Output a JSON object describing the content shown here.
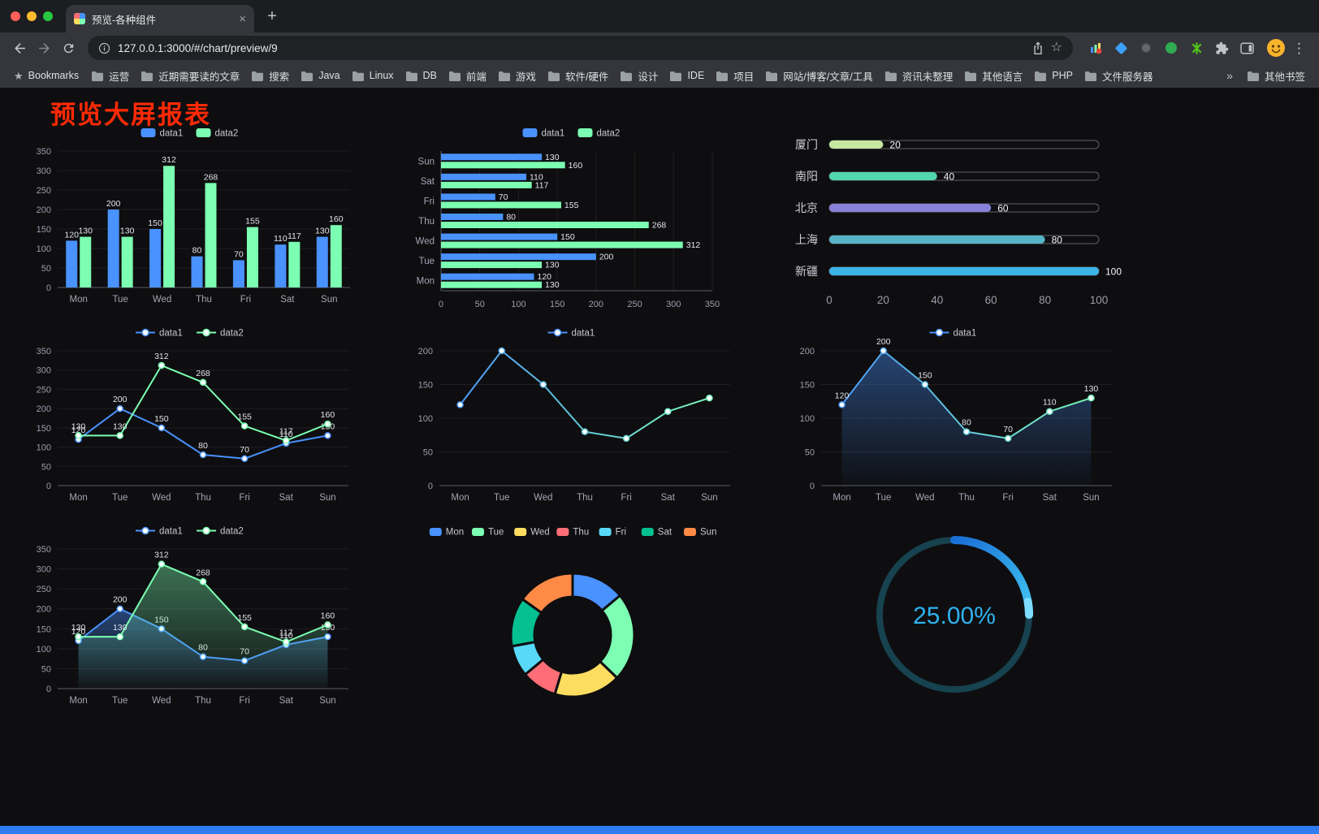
{
  "icons": {
    "tab_close": "×",
    "new_tab": "+",
    "bookmark_star": "☆",
    "menu_kebab": "⋮",
    "bookmarks_root_star": "★"
  },
  "browser": {
    "tab": {
      "title": "预览-各种组件"
    },
    "url": "127.0.0.1:3000/#/chart/preview/9",
    "bookmarks_bar": {
      "label": "Bookmarks",
      "folders": [
        "运营",
        "近期需要读的文章",
        "搜索",
        "Java",
        "Linux",
        "DB",
        "前端",
        "游戏",
        "软件/硬件",
        "设计",
        "IDE",
        "项目",
        "网站/博客/文章/工具",
        "资讯未整理",
        "其他语言",
        "PHP",
        "文件服务器"
      ],
      "overflow": "»",
      "other": "其他书签"
    }
  },
  "page": {
    "title": "预览大屏报表",
    "title_color": "#ff2a05",
    "background": "#0e0e10"
  },
  "chart_data": [
    {
      "type": "bar",
      "legend": [
        "data1",
        "data2"
      ],
      "categories": [
        "Mon",
        "Tue",
        "Wed",
        "Thu",
        "Fri",
        "Sat",
        "Sun"
      ],
      "series": [
        {
          "name": "data1",
          "color": "#4992ff",
          "values": [
            120,
            200,
            150,
            80,
            70,
            110,
            130
          ]
        },
        {
          "name": "data2",
          "color": "#7cffb2",
          "values": [
            130,
            130,
            312,
            268,
            155,
            117,
            160
          ]
        }
      ],
      "ylim": [
        0,
        350
      ],
      "yticks": [
        0,
        50,
        100,
        150,
        200,
        250,
        300,
        350
      ]
    },
    {
      "type": "hbar",
      "legend": [
        "data1",
        "data2"
      ],
      "categories": [
        "Mon",
        "Tue",
        "Wed",
        "Thu",
        "Fri",
        "Sat",
        "Sun"
      ],
      "series": [
        {
          "name": "data1",
          "color": "#4992ff",
          "values": [
            120,
            200,
            150,
            80,
            70,
            110,
            130
          ]
        },
        {
          "name": "data2",
          "color": "#7cffb2",
          "values": [
            130,
            130,
            312,
            268,
            155,
            117,
            160
          ]
        }
      ],
      "xlim": [
        0,
        350
      ],
      "xticks": [
        0,
        50,
        100,
        150,
        200,
        250,
        300,
        350
      ]
    },
    {
      "type": "progress",
      "items": [
        {
          "label": "厦门",
          "value": 20,
          "color": "#c8e7a1"
        },
        {
          "label": "南阳",
          "value": 40,
          "color": "#52d6ad"
        },
        {
          "label": "北京",
          "value": 60,
          "color": "#8781da"
        },
        {
          "label": "上海",
          "value": 80,
          "color": "#57b4c8"
        },
        {
          "label": "新疆",
          "value": 100,
          "color": "#3ab5e8"
        }
      ],
      "xlim": [
        0,
        100
      ],
      "xticks": [
        0,
        20,
        40,
        60,
        80,
        100
      ]
    },
    {
      "type": "line",
      "legend": [
        "data1",
        "data2"
      ],
      "categories": [
        "Mon",
        "Tue",
        "Wed",
        "Thu",
        "Fri",
        "Sat",
        "Sun"
      ],
      "series": [
        {
          "name": "data1",
          "color": "#4992ff",
          "values": [
            120,
            200,
            150,
            80,
            70,
            110,
            130
          ]
        },
        {
          "name": "data2",
          "color": "#7cffb2",
          "values": [
            130,
            130,
            312,
            268,
            155,
            117,
            160
          ]
        }
      ],
      "ylim": [
        0,
        350
      ],
      "yticks": [
        0,
        50,
        100,
        150,
        200,
        250,
        300,
        350
      ],
      "show_labels": true
    },
    {
      "type": "line",
      "legend": [
        "data1"
      ],
      "categories": [
        "Mon",
        "Tue",
        "Wed",
        "Thu",
        "Fri",
        "Sat",
        "Sun"
      ],
      "series": [
        {
          "name": "data1",
          "gradient": [
            "#4992ff",
            "#7cffb2"
          ],
          "values": [
            120,
            200,
            150,
            80,
            70,
            110,
            130
          ]
        }
      ],
      "ylim": [
        0,
        200
      ],
      "yticks": [
        0,
        50,
        100,
        150,
        200
      ],
      "show_labels": false
    },
    {
      "type": "line",
      "legend": [
        "data1"
      ],
      "categories": [
        "Mon",
        "Tue",
        "Wed",
        "Thu",
        "Fri",
        "Sat",
        "Sun"
      ],
      "series": [
        {
          "name": "data1",
          "gradient": [
            "#4992ff",
            "#7cffb2"
          ],
          "area": true,
          "values": [
            120,
            200,
            150,
            80,
            70,
            110,
            130
          ]
        }
      ],
      "ylim": [
        0,
        200
      ],
      "yticks": [
        0,
        50,
        100,
        150,
        200
      ],
      "show_labels": true
    },
    {
      "type": "line",
      "legend": [
        "data1",
        "data2"
      ],
      "categories": [
        "Mon",
        "Tue",
        "Wed",
        "Thu",
        "Fri",
        "Sat",
        "Sun"
      ],
      "series": [
        {
          "name": "data1",
          "color": "#4992ff",
          "area": true,
          "values": [
            120,
            200,
            150,
            80,
            70,
            110,
            130
          ]
        },
        {
          "name": "data2",
          "color": "#7cffb2",
          "area": true,
          "values": [
            130,
            130,
            312,
            268,
            155,
            117,
            160
          ]
        }
      ],
      "ylim": [
        0,
        350
      ],
      "yticks": [
        0,
        50,
        100,
        150,
        200,
        250,
        300,
        350
      ],
      "show_labels": true
    },
    {
      "type": "donut",
      "legend": [
        "Mon",
        "Tue",
        "Wed",
        "Thu",
        "Fri",
        "Sat",
        "Sun"
      ],
      "values": [
        120,
        200,
        150,
        80,
        70,
        110,
        130
      ],
      "colors": [
        "#4992ff",
        "#7cffb2",
        "#fddd60",
        "#ff6e76",
        "#58d9f9",
        "#05c091",
        "#ff8a45"
      ]
    },
    {
      "type": "gauge",
      "value": 25,
      "label": "25.00%",
      "track_color": "#17424f",
      "bar_colors": [
        "#1a6fd6",
        "#41c6f2"
      ],
      "text_color": "#2eb2ef"
    }
  ]
}
